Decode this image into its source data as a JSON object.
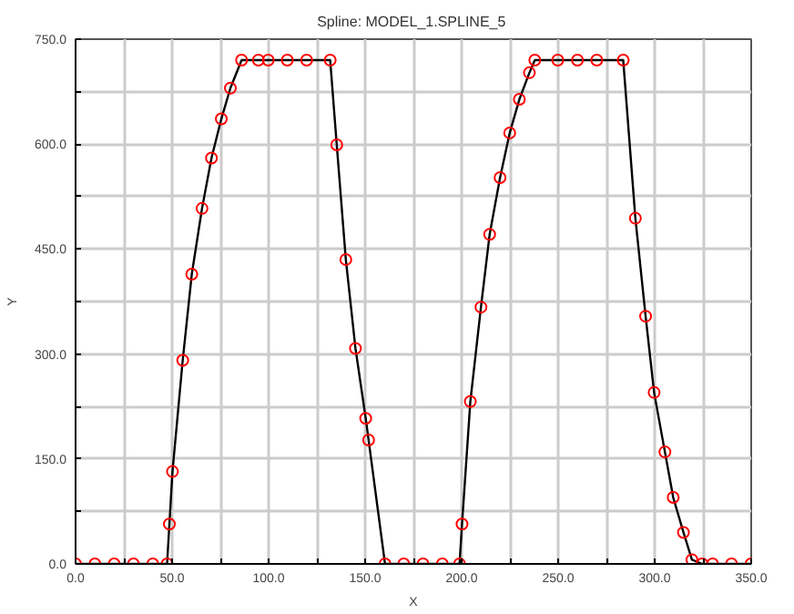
{
  "chart_data": {
    "type": "line",
    "title": "Spline:  MODEL_1.SPLINE_5",
    "xlabel": "X",
    "ylabel": "Y",
    "xlim": [
      0,
      350
    ],
    "ylim": [
      0,
      750
    ],
    "xticks": [
      {
        "value": 0,
        "label": "0.0"
      },
      {
        "value": 25,
        "label": null
      },
      {
        "value": 50,
        "label": "50.0"
      },
      {
        "value": 75,
        "label": null
      },
      {
        "value": 100,
        "label": "100.0"
      },
      {
        "value": 125,
        "label": null
      },
      {
        "value": 150,
        "label": "150.0"
      },
      {
        "value": 175,
        "label": null
      },
      {
        "value": 200,
        "label": "200.0"
      },
      {
        "value": 225,
        "label": null
      },
      {
        "value": 250,
        "label": "250.0"
      },
      {
        "value": 275,
        "label": null
      },
      {
        "value": 300,
        "label": "300.0"
      },
      {
        "value": 325,
        "label": null
      },
      {
        "value": 350,
        "label": "350.0"
      }
    ],
    "yticks": [
      {
        "value": 0,
        "label": "0.0"
      },
      {
        "value": 75,
        "label": null
      },
      {
        "value": 150,
        "label": "150.0"
      },
      {
        "value": 225,
        "label": null
      },
      {
        "value": 300,
        "label": "300.0"
      },
      {
        "value": 375,
        "label": null
      },
      {
        "value": 450,
        "label": "450.0"
      },
      {
        "value": 525,
        "label": null
      },
      {
        "value": 600,
        "label": "600.0"
      },
      {
        "value": 675,
        "label": null
      },
      {
        "value": 750,
        "label": "750.0"
      }
    ],
    "grid": true,
    "x": [
      0,
      10,
      20,
      30,
      40,
      47.4,
      48.6,
      50.2,
      55.5,
      60.2,
      65.5,
      70.4,
      75.5,
      80.2,
      86,
      94.7,
      99.8,
      109.7,
      119.7,
      131.9,
      135.3,
      140,
      145,
      150.3,
      151.8,
      160.3,
      170,
      180,
      190,
      198.9,
      200.2,
      204.5,
      210,
      214.5,
      219.9,
      224.9,
      229.9,
      235.1,
      237.9,
      249.8,
      260,
      270,
      283.7,
      290,
      295.3,
      299.7,
      305.3,
      309.6,
      314.9,
      319.3,
      324.6,
      330,
      339.8,
      349.9
    ],
    "series": [
      {
        "color": "#000000",
        "marker": "none",
        "values": [
          0,
          0,
          0,
          0,
          0,
          0,
          57,
          132,
          291,
          414,
          508,
          580,
          636,
          680,
          720,
          720,
          720,
          720,
          720,
          720,
          599,
          435,
          308,
          208,
          177,
          0,
          0,
          0,
          0,
          0,
          57,
          232,
          367,
          471,
          552,
          616,
          664,
          702,
          720,
          720,
          720,
          720,
          720,
          494,
          354,
          245,
          160,
          95,
          45,
          6,
          0,
          0,
          0,
          0
        ]
      },
      {
        "type": "scatter",
        "color": "#ff0000",
        "marker": "circle",
        "values": [
          0,
          0,
          0,
          0,
          0,
          0,
          57,
          132,
          291,
          414,
          508,
          580,
          636,
          680,
          720,
          720,
          720,
          720,
          720,
          720,
          599,
          435,
          308,
          208,
          177,
          0,
          0,
          0,
          0,
          0,
          57,
          232,
          367,
          471,
          552,
          616,
          664,
          702,
          720,
          720,
          720,
          720,
          720,
          494,
          354,
          245,
          160,
          95,
          45,
          6,
          0,
          0,
          0,
          0
        ]
      }
    ]
  }
}
